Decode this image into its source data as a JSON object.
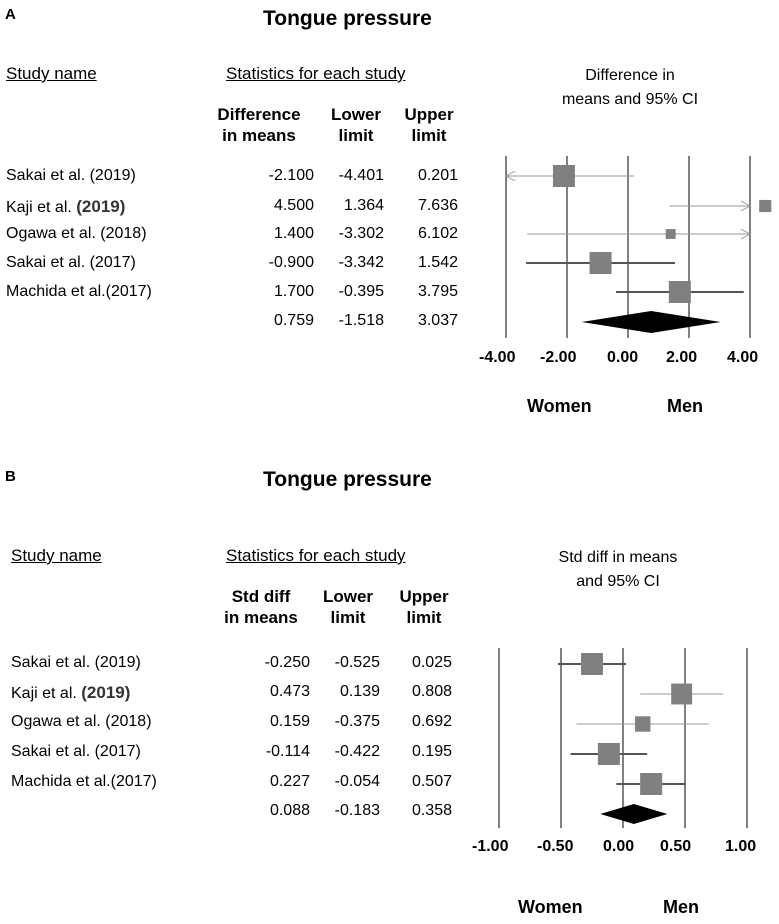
{
  "panels": [
    {
      "label": "A",
      "title": "Tongue pressure",
      "study_header": "Study name",
      "stats_header": "Statistics for each study",
      "columns": [
        "Difference in means",
        "Lower limit",
        "Upper limit"
      ],
      "col1": [
        "Difference",
        "in means"
      ],
      "col2": [
        "Lower",
        "limit"
      ],
      "col3": [
        "Upper",
        "limit"
      ],
      "ci_header": [
        "Difference in",
        "means and 95% CI"
      ],
      "rows": [
        {
          "study": "Sakai et al. (2019)",
          "prefix": "",
          "year": "",
          "est": "-2.100",
          "lo": "-4.401",
          "hi": "0.201"
        },
        {
          "study": "",
          "prefix": "Kaji et al.",
          "year": "(2019)",
          "est": "4.500",
          "lo": "1.364",
          "hi": "7.636"
        },
        {
          "study": "Ogawa et al. (2018)",
          "prefix": "",
          "year": "",
          "est": "1.400",
          "lo": "-3.302",
          "hi": "6.102"
        },
        {
          "study": "Sakai et al. (2017)",
          "prefix": "",
          "year": "",
          "est": "-0.900",
          "lo": "-3.342",
          "hi": "1.542"
        },
        {
          "study": "Machida et al.(2017)",
          "prefix": "",
          "year": "",
          "est": "1.700",
          "lo": "-0.395",
          "hi": "3.795"
        },
        {
          "study": "",
          "prefix": "",
          "year": "",
          "est": "0.759",
          "lo": "-1.518",
          "hi": "3.037"
        }
      ],
      "ticks": [
        "-4.00",
        "-2.00",
        "0.00",
        "2.00",
        "4.00"
      ],
      "left_label": "Women",
      "right_label": "Men"
    },
    {
      "label": "B",
      "title": "Tongue pressure",
      "study_header": "Study name",
      "stats_header": "Statistics for each study",
      "columns": [
        "Std diff in means",
        "Lower limit",
        "Upper limit"
      ],
      "col1": [
        "Std diff",
        "in means"
      ],
      "col2": [
        "Lower",
        "limit"
      ],
      "col3": [
        "Upper",
        "limit"
      ],
      "ci_header": [
        "Std diff in means",
        "and 95% CI"
      ],
      "rows": [
        {
          "study": "Sakai et al. (2019)",
          "prefix": "",
          "year": "",
          "est": "-0.250",
          "lo": "-0.525",
          "hi": "0.025"
        },
        {
          "study": "",
          "prefix": "Kaji et al.",
          "year": "(2019)",
          "est": "0.473",
          "lo": "0.139",
          "hi": "0.808"
        },
        {
          "study": "Ogawa et al. (2018)",
          "prefix": "",
          "year": "",
          "est": "0.159",
          "lo": "-0.375",
          "hi": "0.692"
        },
        {
          "study": "Sakai et al. (2017)",
          "prefix": "",
          "year": "",
          "est": "-0.114",
          "lo": "-0.422",
          "hi": "0.195"
        },
        {
          "study": "Machida et al.(2017)",
          "prefix": "",
          "year": "",
          "est": "0.227",
          "lo": "-0.054",
          "hi": "0.507"
        },
        {
          "study": "",
          "prefix": "",
          "year": "",
          "est": "0.088",
          "lo": "-0.183",
          "hi": "0.358"
        }
      ],
      "ticks": [
        "-1.00",
        "-0.50",
        "0.00",
        "0.50",
        "1.00"
      ],
      "left_label": "Women",
      "right_label": "Men"
    }
  ],
  "chart_data": [
    {
      "type": "forest",
      "title": "Tongue pressure",
      "panel": "A",
      "measure": "Difference in means",
      "xlim": [
        -4,
        4
      ],
      "xticks": [
        -4,
        -2,
        0,
        2,
        4
      ],
      "weights": [
        1.0,
        0.55,
        0.45,
        1.0,
        1.0
      ],
      "studies": [
        {
          "name": "Sakai et al. (2019)",
          "estimate": -2.1,
          "lower": -4.401,
          "upper": 0.201
        },
        {
          "name": "Kaji et al. (2019)",
          "estimate": 4.5,
          "lower": 1.364,
          "upper": 7.636
        },
        {
          "name": "Ogawa et al. (2018)",
          "estimate": 1.4,
          "lower": -3.302,
          "upper": 6.102
        },
        {
          "name": "Sakai et al. (2017)",
          "estimate": -0.9,
          "lower": -3.342,
          "upper": 1.542
        },
        {
          "name": "Machida et al.(2017)",
          "estimate": 1.7,
          "lower": -0.395,
          "upper": 3.795
        }
      ],
      "pooled": {
        "estimate": 0.759,
        "lower": -1.518,
        "upper": 3.037
      },
      "xlabel_left": "Women",
      "xlabel_right": "Men",
      "colors": {
        "box": "#808080",
        "line_dark": "#555555",
        "line_light": "#999999",
        "diamond": "#000000"
      }
    },
    {
      "type": "forest",
      "title": "Tongue pressure",
      "panel": "B",
      "measure": "Std diff in means",
      "xlim": [
        -1,
        1
      ],
      "xticks": [
        -1,
        -0.5,
        0,
        0.5,
        1
      ],
      "weights": [
        1.0,
        0.95,
        0.7,
        1.0,
        1.0
      ],
      "studies": [
        {
          "name": "Sakai et al. (2019)",
          "estimate": -0.25,
          "lower": -0.525,
          "upper": 0.025
        },
        {
          "name": "Kaji et al. (2019)",
          "estimate": 0.473,
          "lower": 0.139,
          "upper": 0.808
        },
        {
          "name": "Ogawa et al. (2018)",
          "estimate": 0.159,
          "lower": -0.375,
          "upper": 0.692
        },
        {
          "name": "Sakai et al. (2017)",
          "estimate": -0.114,
          "lower": -0.422,
          "upper": 0.195
        },
        {
          "name": "Machida et al.(2017)",
          "estimate": 0.227,
          "lower": -0.054,
          "upper": 0.507
        }
      ],
      "pooled": {
        "estimate": 0.088,
        "lower": -0.183,
        "upper": 0.358
      },
      "xlabel_left": "Women",
      "xlabel_right": "Men",
      "colors": {
        "box": "#808080",
        "line_dark": "#555555",
        "line_light": "#999999",
        "diamond": "#000000"
      }
    }
  ]
}
